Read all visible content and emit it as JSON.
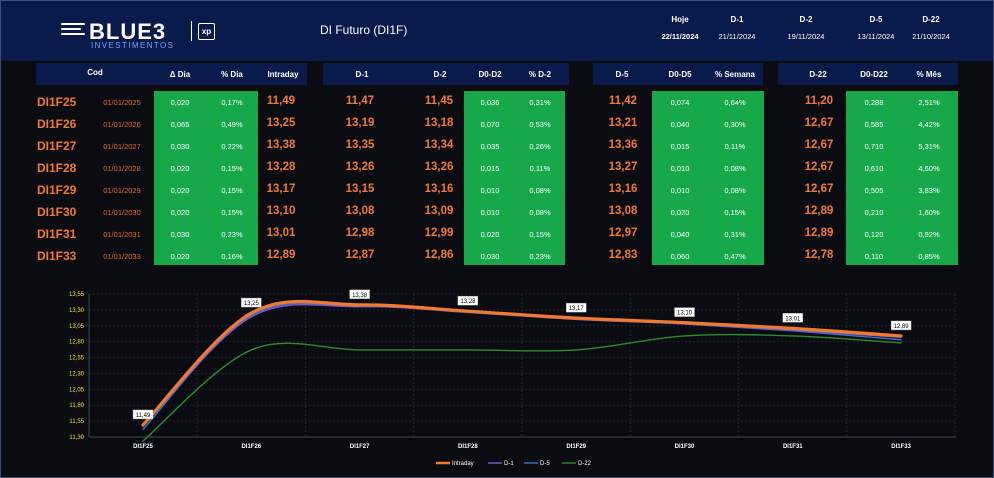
{
  "header": {
    "brand": "BLUE3",
    "brand_sub": "INVESTIMENTOS",
    "partner": "xp",
    "title": "DI Futuro (DI1F)",
    "dates": [
      {
        "label": "Hoje",
        "date": "22/11/2024"
      },
      {
        "label": "D-1",
        "date": "21/11/2024"
      },
      {
        "label": "D-2",
        "date": "19/11/2024"
      },
      {
        "label": "D-5",
        "date": "13/11/2024"
      },
      {
        "label": "D-22",
        "date": "21/10/2024"
      }
    ]
  },
  "columns": [
    "Cod",
    "Δ Dia",
    "% Dia",
    "Intraday",
    "D-1",
    "D-2",
    "D0-D2",
    "% D-2",
    "D-5",
    "D0-D5",
    "% Semana",
    "D-22",
    "D0-D22",
    "% Mês"
  ],
  "rows": [
    {
      "cod": "DI1F25",
      "venc": "01/01/2025",
      "delta_dia": "0,020",
      "pct_dia": "0,17%",
      "intraday": "11,49",
      "d1": "11,47",
      "d2": "11,45",
      "d0d2": "0,036",
      "pct_d2": "0,31%",
      "d5": "11,42",
      "d0d5": "0,074",
      "pct_semana": "0,64%",
      "d22": "11,20",
      "d0d22": "0,288",
      "pct_mes": "2,51%"
    },
    {
      "cod": "DI1F26",
      "venc": "01/01/2026",
      "delta_dia": "0,065",
      "pct_dia": "0,49%",
      "intraday": "13,25",
      "d1": "13,19",
      "d2": "13,18",
      "d0d2": "0,070",
      "pct_d2": "0,53%",
      "d5": "13,21",
      "d0d5": "0,040",
      "pct_semana": "0,30%",
      "d22": "12,67",
      "d0d22": "0,585",
      "pct_mes": "4,42%"
    },
    {
      "cod": "DI1F27",
      "venc": "01/01/2027",
      "delta_dia": "0,030",
      "pct_dia": "0,22%",
      "intraday": "13,38",
      "d1": "13,35",
      "d2": "13,34",
      "d0d2": "0,035",
      "pct_d2": "0,26%",
      "d5": "13,36",
      "d0d5": "0,015",
      "pct_semana": "0,11%",
      "d22": "12,67",
      "d0d22": "0,710",
      "pct_mes": "5,31%"
    },
    {
      "cod": "DI1F28",
      "venc": "01/01/2028",
      "delta_dia": "0,020",
      "pct_dia": "0,15%",
      "intraday": "13,28",
      "d1": "13,26",
      "d2": "13,26",
      "d0d2": "0,015",
      "pct_d2": "0,11%",
      "d5": "13,27",
      "d0d5": "0,010",
      "pct_semana": "0,08%",
      "d22": "12,67",
      "d0d22": "0,610",
      "pct_mes": "4,60%"
    },
    {
      "cod": "DI1F29",
      "venc": "01/01/2029",
      "delta_dia": "0,020",
      "pct_dia": "0,15%",
      "intraday": "13,17",
      "d1": "13,15",
      "d2": "13,16",
      "d0d2": "0,010",
      "pct_d2": "0,08%",
      "d5": "13,16",
      "d0d5": "0,010",
      "pct_semana": "0,08%",
      "d22": "12,67",
      "d0d22": "0,505",
      "pct_mes": "3,83%"
    },
    {
      "cod": "DI1F30",
      "venc": "01/01/2030",
      "delta_dia": "0,020",
      "pct_dia": "0,15%",
      "intraday": "13,10",
      "d1": "13,08",
      "d2": "13,09",
      "d0d2": "0,010",
      "pct_d2": "0,08%",
      "d5": "13,08",
      "d0d5": "0,020",
      "pct_semana": "0,15%",
      "d22": "12,89",
      "d0d22": "0,210",
      "pct_mes": "1,60%"
    },
    {
      "cod": "DI1F31",
      "venc": "01/01/2031",
      "delta_dia": "0,030",
      "pct_dia": "0,23%",
      "intraday": "13,01",
      "d1": "12,98",
      "d2": "12,99",
      "d0d2": "0,020",
      "pct_d2": "0,15%",
      "d5": "12,97",
      "d0d5": "0,040",
      "pct_semana": "0,31%",
      "d22": "12,89",
      "d0d22": "0,120",
      "pct_mes": "0,92%"
    },
    {
      "cod": "DI1F33",
      "venc": "01/01/2033",
      "delta_dia": "0,020",
      "pct_dia": "0,16%",
      "intraday": "12,89",
      "d1": "12,87",
      "d2": "12,86",
      "d0d2": "0,030",
      "pct_d2": "0,23%",
      "d5": "12,83",
      "d0d5": "0,060",
      "pct_semana": "0,47%",
      "d22": "12,78",
      "d0d22": "0,110",
      "pct_mes": "0,85%"
    }
  ],
  "colors": {
    "header_bg": "#0a1a4a",
    "green": "#17a84a",
    "orange": "#f07a30",
    "intraday": "#f07a30",
    "d1": "#7b5cc9",
    "d5": "#3f72c8",
    "d22": "#2f8a2f"
  },
  "chart_data": {
    "type": "line",
    "categories": [
      "DI1F25",
      "DI1F26",
      "DI1F27",
      "DI1F28",
      "DI1F29",
      "DI1F30",
      "DI1F31",
      "DI1F33"
    ],
    "ylim": [
      11.3,
      13.55
    ],
    "yticks": [
      "13,55",
      "13,30",
      "13,05",
      "12,80",
      "12,55",
      "12,30",
      "12,05",
      "11,80",
      "11,55",
      "11,30"
    ],
    "grid": true,
    "legend_position": "bottom",
    "series": [
      {
        "name": "Intraday",
        "color": "#f07a30",
        "values": [
          11.49,
          13.25,
          13.38,
          13.28,
          13.17,
          13.1,
          13.01,
          12.89
        ],
        "labels": [
          "11,49",
          "13,25",
          "13,38",
          "13,28",
          "13,17",
          "13,10",
          "13,01",
          "12,89"
        ]
      },
      {
        "name": "D-1",
        "color": "#7b5cc9",
        "values": [
          11.47,
          13.19,
          13.35,
          13.26,
          13.15,
          13.08,
          12.98,
          12.87
        ]
      },
      {
        "name": "D-5",
        "color": "#3f72c8",
        "values": [
          11.42,
          13.21,
          13.36,
          13.27,
          13.16,
          13.08,
          12.97,
          12.83
        ]
      },
      {
        "name": "D-22",
        "color": "#2f8a2f",
        "values": [
          11.2,
          12.67,
          12.67,
          12.67,
          12.67,
          12.89,
          12.89,
          12.78
        ]
      }
    ]
  }
}
